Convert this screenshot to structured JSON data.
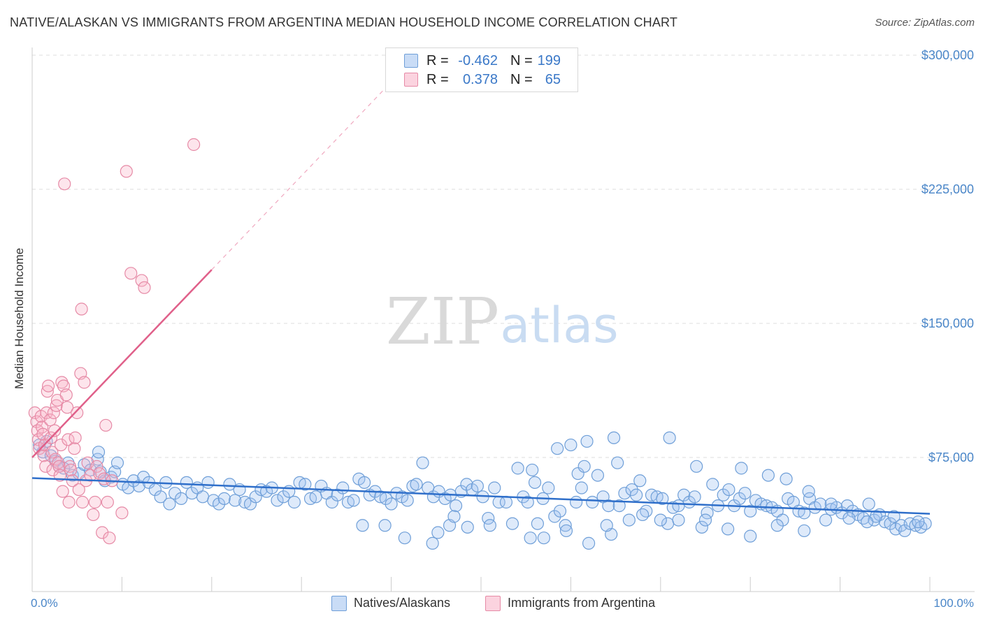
{
  "header": {
    "title": "NATIVE/ALASKAN VS IMMIGRANTS FROM ARGENTINA MEDIAN HOUSEHOLD INCOME CORRELATION CHART",
    "source": "Source: ZipAtlas.com"
  },
  "watermark": {
    "zip": "ZIP",
    "atlas": "atlas"
  },
  "legend_top": {
    "rows": [
      {
        "r_label": "R =",
        "r_value": "-0.462",
        "n_label": "N =",
        "n_value": "199",
        "color": "#a9c8f0",
        "border": "#6f9fd8"
      },
      {
        "r_label": "R =",
        "r_value": "0.378",
        "n_label": "N =",
        "n_value": "65",
        "color": "#f8bfd0",
        "border": "#e68aa6"
      }
    ]
  },
  "legend_bottom": [
    {
      "label": "Natives/Alaskans",
      "color": "#a9c8f0",
      "border": "#6f9fd8"
    },
    {
      "label": "Immigrants from Argentina",
      "color": "#f8bfd0",
      "border": "#e68aa6"
    }
  ],
  "colors": {
    "blue_fill": "rgba(160,195,240,0.35)",
    "blue_stroke": "#6f9fd8",
    "blue_line": "#2f6fca",
    "pink_fill": "rgba(248,180,200,0.35)",
    "pink_stroke": "#e68aa6",
    "pink_line": "#e0608a",
    "grid": "#dcdcdc",
    "tick_text": "#4a86c8"
  },
  "chart_data": {
    "type": "scatter",
    "title": "NATIVE/ALASKAN VS IMMIGRANTS FROM ARGENTINA MEDIAN HOUSEHOLD INCOME CORRELATION CHART",
    "xlabel": "",
    "ylabel": "Median Household Income",
    "xlim": [
      0,
      100
    ],
    "ylim": [
      0,
      300000
    ],
    "x_tick_labels": [
      "0.0%",
      "100.0%"
    ],
    "y_ticks": [
      75000,
      150000,
      225000,
      300000
    ],
    "y_tick_labels": [
      "$75,000",
      "$150,000",
      "$225,000",
      "$300,000"
    ],
    "grid": true,
    "legend_position": "top-center",
    "series": [
      {
        "name": "Natives/Alaskans",
        "r": -0.462,
        "n": 199,
        "trend": {
          "x": [
            0,
            100
          ],
          "y": [
            63500,
            43500
          ]
        },
        "points": [
          [
            0.8,
            82000
          ],
          [
            1.2,
            78000
          ],
          [
            1.6,
            84000
          ],
          [
            2.1,
            76000
          ],
          [
            2.6,
            73000
          ],
          [
            3.0,
            70000
          ],
          [
            3.5,
            69000
          ],
          [
            4.0,
            72000
          ],
          [
            4.5,
            65000
          ],
          [
            5.2,
            66000
          ],
          [
            5.8,
            71000
          ],
          [
            6.5,
            68000
          ],
          [
            7.3,
            74000
          ],
          [
            7.6,
            67000
          ],
          [
            7.4,
            78000
          ],
          [
            8.1,
            62000
          ],
          [
            8.8,
            64000
          ],
          [
            9.2,
            67000
          ],
          [
            9.5,
            72000
          ],
          [
            10.1,
            60000
          ],
          [
            10.7,
            58000
          ],
          [
            11.3,
            62000
          ],
          [
            11.9,
            59000
          ],
          [
            12.4,
            64000
          ],
          [
            13.0,
            61000
          ],
          [
            13.7,
            57000
          ],
          [
            14.3,
            53000
          ],
          [
            14.9,
            61000
          ],
          [
            15.3,
            49000
          ],
          [
            15.9,
            55000
          ],
          [
            16.6,
            52000
          ],
          [
            17.2,
            61000
          ],
          [
            17.8,
            55000
          ],
          [
            18.4,
            58000
          ],
          [
            19.0,
            53000
          ],
          [
            19.6,
            61000
          ],
          [
            20.2,
            51000
          ],
          [
            20.8,
            49000
          ],
          [
            21.4,
            52000
          ],
          [
            22.0,
            60000
          ],
          [
            22.6,
            51000
          ],
          [
            23.1,
            57000
          ],
          [
            23.7,
            50000
          ],
          [
            24.3,
            49000
          ],
          [
            24.9,
            53000
          ],
          [
            25.5,
            57000
          ],
          [
            26.1,
            56000
          ],
          [
            26.7,
            58000
          ],
          [
            27.3,
            51000
          ],
          [
            28.0,
            53000
          ],
          [
            28.6,
            56000
          ],
          [
            29.2,
            50000
          ],
          [
            29.8,
            61000
          ],
          [
            30.4,
            60000
          ],
          [
            31.0,
            52000
          ],
          [
            31.6,
            53000
          ],
          [
            32.2,
            59000
          ],
          [
            32.8,
            55000
          ],
          [
            33.4,
            50000
          ],
          [
            34.0,
            54000
          ],
          [
            34.6,
            58000
          ],
          [
            35.2,
            50000
          ],
          [
            35.8,
            51000
          ],
          [
            36.4,
            63000
          ],
          [
            37.0,
            61000
          ],
          [
            37.6,
            54000
          ],
          [
            38.2,
            56000
          ],
          [
            38.8,
            53000
          ],
          [
            39.4,
            52000
          ],
          [
            40.0,
            49000
          ],
          [
            40.6,
            55000
          ],
          [
            41.2,
            53000
          ],
          [
            41.8,
            51000
          ],
          [
            42.4,
            59000
          ],
          [
            42.8,
            60000
          ],
          [
            43.5,
            72000
          ],
          [
            44.1,
            58000
          ],
          [
            44.7,
            53000
          ],
          [
            45.3,
            56000
          ],
          [
            46.0,
            52000
          ],
          [
            46.6,
            54000
          ],
          [
            47.2,
            48000
          ],
          [
            47.8,
            56000
          ],
          [
            48.4,
            60000
          ],
          [
            49.0,
            57000
          ],
          [
            49.6,
            59000
          ],
          [
            50.2,
            53000
          ],
          [
            50.8,
            41000
          ],
          [
            51.5,
            58000
          ],
          [
            52.0,
            50000
          ],
          [
            52.8,
            50000
          ],
          [
            53.5,
            38000
          ],
          [
            54.1,
            69000
          ],
          [
            54.7,
            53000
          ],
          [
            55.2,
            50000
          ],
          [
            55.7,
            68000
          ],
          [
            56.3,
            38000
          ],
          [
            56.9,
            52000
          ],
          [
            57.5,
            58000
          ],
          [
            58.2,
            42000
          ],
          [
            58.8,
            45000
          ],
          [
            59.4,
            37000
          ],
          [
            60.0,
            82000
          ],
          [
            60.6,
            50000
          ],
          [
            61.2,
            58000
          ],
          [
            61.8,
            84000
          ],
          [
            62.4,
            50000
          ],
          [
            63.0,
            65000
          ],
          [
            63.6,
            53000
          ],
          [
            64.2,
            48000
          ],
          [
            64.8,
            86000
          ],
          [
            65.4,
            48000
          ],
          [
            66.0,
            55000
          ],
          [
            66.8,
            57000
          ],
          [
            67.3,
            54000
          ],
          [
            67.7,
            62000
          ],
          [
            68.4,
            45000
          ],
          [
            69.0,
            54000
          ],
          [
            69.6,
            53000
          ],
          [
            70.2,
            52000
          ],
          [
            70.8,
            38000
          ],
          [
            71.4,
            47000
          ],
          [
            72.0,
            48000
          ],
          [
            72.6,
            54000
          ],
          [
            73.2,
            50000
          ],
          [
            73.8,
            53000
          ],
          [
            74.6,
            36000
          ],
          [
            75.2,
            44000
          ],
          [
            75.8,
            60000
          ],
          [
            76.4,
            48000
          ],
          [
            77.0,
            54000
          ],
          [
            77.6,
            57000
          ],
          [
            78.2,
            48000
          ],
          [
            78.8,
            52000
          ],
          [
            79.4,
            55000
          ],
          [
            80.0,
            45000
          ],
          [
            80.6,
            51000
          ],
          [
            81.2,
            49000
          ],
          [
            81.8,
            48000
          ],
          [
            82.4,
            47000
          ],
          [
            83.0,
            45000
          ],
          [
            83.6,
            40000
          ],
          [
            84.2,
            52000
          ],
          [
            84.8,
            50000
          ],
          [
            85.4,
            45000
          ],
          [
            86.0,
            44000
          ],
          [
            86.6,
            52000
          ],
          [
            87.2,
            47000
          ],
          [
            87.8,
            49000
          ],
          [
            88.4,
            40000
          ],
          [
            89.0,
            46000
          ],
          [
            89.6,
            47000
          ],
          [
            90.2,
            44000
          ],
          [
            90.8,
            48000
          ],
          [
            91.4,
            45000
          ],
          [
            92.0,
            43000
          ],
          [
            92.6,
            41000
          ],
          [
            93.2,
            49000
          ],
          [
            93.8,
            40000
          ],
          [
            94.4,
            43000
          ],
          [
            95.0,
            39000
          ],
          [
            95.6,
            38000
          ],
          [
            96.2,
            35000
          ],
          [
            96.8,
            37000
          ],
          [
            97.2,
            34000
          ],
          [
            97.8,
            38000
          ],
          [
            98.4,
            37000
          ],
          [
            99.0,
            36000
          ],
          [
            99.5,
            38000
          ],
          [
            98.7,
            39000
          ],
          [
            96.0,
            42000
          ],
          [
            94.0,
            42000
          ],
          [
            93.0,
            39000
          ],
          [
            91.0,
            41000
          ],
          [
            89.0,
            49000
          ],
          [
            86.0,
            34000
          ],
          [
            83.0,
            37000
          ],
          [
            80.0,
            31000
          ],
          [
            77.5,
            35000
          ],
          [
            75.0,
            40000
          ],
          [
            72.0,
            40000
          ],
          [
            70.0,
            40000
          ],
          [
            68.0,
            43000
          ],
          [
            66.5,
            40000
          ],
          [
            64.5,
            32000
          ],
          [
            64.0,
            37000
          ],
          [
            62.0,
            27000
          ],
          [
            59.5,
            34000
          ],
          [
            57.0,
            30000
          ],
          [
            55.5,
            30000
          ],
          [
            51.0,
            37000
          ],
          [
            48.5,
            36000
          ],
          [
            46.5,
            37000
          ],
          [
            45.2,
            33000
          ],
          [
            44.6,
            27000
          ],
          [
            36.8,
            37000
          ],
          [
            39.3,
            37000
          ],
          [
            41.5,
            30000
          ],
          [
            47.0,
            42000
          ],
          [
            56.0,
            61000
          ],
          [
            58.5,
            80000
          ],
          [
            60.8,
            66000
          ],
          [
            61.5,
            70000
          ],
          [
            65.2,
            72000
          ],
          [
            71.0,
            86000
          ],
          [
            74.0,
            70000
          ],
          [
            79.0,
            69000
          ],
          [
            82.0,
            65000
          ],
          [
            84.0,
            63000
          ],
          [
            86.5,
            56000
          ]
        ]
      },
      {
        "name": "Immigrants from Argentina",
        "r": 0.378,
        "n": 65,
        "trend": {
          "x": [
            0,
            20
          ],
          "y": [
            75000,
            180000
          ],
          "dashed_to": {
            "x": 40,
            "y": 285000
          }
        },
        "points": [
          [
            0.3,
            100000
          ],
          [
            0.5,
            95000
          ],
          [
            0.6,
            90000
          ],
          [
            0.7,
            85000
          ],
          [
            0.8,
            80000
          ],
          [
            1.0,
            98000
          ],
          [
            1.1,
            92000
          ],
          [
            1.2,
            88000
          ],
          [
            1.3,
            76000
          ],
          [
            1.4,
            82000
          ],
          [
            1.5,
            70000
          ],
          [
            1.6,
            100000
          ],
          [
            1.7,
            112000
          ],
          [
            1.8,
            115000
          ],
          [
            2.0,
            96000
          ],
          [
            2.1,
            86000
          ],
          [
            2.2,
            78000
          ],
          [
            2.3,
            68000
          ],
          [
            2.4,
            100000
          ],
          [
            2.5,
            90000
          ],
          [
            2.6,
            74000
          ],
          [
            2.7,
            104000
          ],
          [
            2.8,
            107000
          ],
          [
            2.9,
            72000
          ],
          [
            3.0,
            70000
          ],
          [
            3.1,
            65000
          ],
          [
            3.2,
            82000
          ],
          [
            3.3,
            117000
          ],
          [
            3.5,
            115000
          ],
          [
            3.6,
            228000
          ],
          [
            3.8,
            110000
          ],
          [
            3.9,
            103000
          ],
          [
            4.0,
            85000
          ],
          [
            4.1,
            50000
          ],
          [
            4.2,
            70000
          ],
          [
            4.3,
            68000
          ],
          [
            4.5,
            62000
          ],
          [
            4.7,
            80000
          ],
          [
            4.8,
            86000
          ],
          [
            5.0,
            100000
          ],
          [
            5.2,
            57000
          ],
          [
            5.4,
            122000
          ],
          [
            5.5,
            158000
          ],
          [
            5.6,
            50000
          ],
          [
            5.8,
            117000
          ],
          [
            6.0,
            62000
          ],
          [
            6.2,
            72000
          ],
          [
            6.5,
            65000
          ],
          [
            6.8,
            43000
          ],
          [
            7.0,
            50000
          ],
          [
            7.2,
            70000
          ],
          [
            7.5,
            66000
          ],
          [
            7.8,
            33000
          ],
          [
            8.0,
            63000
          ],
          [
            8.2,
            93000
          ],
          [
            8.4,
            50000
          ],
          [
            8.6,
            30000
          ],
          [
            8.9,
            62000
          ],
          [
            10.0,
            44000
          ],
          [
            10.5,
            235000
          ],
          [
            11.0,
            178000
          ],
          [
            12.2,
            174000
          ],
          [
            12.5,
            170000
          ],
          [
            18.0,
            250000
          ],
          [
            3.4,
            56000
          ]
        ]
      }
    ]
  }
}
